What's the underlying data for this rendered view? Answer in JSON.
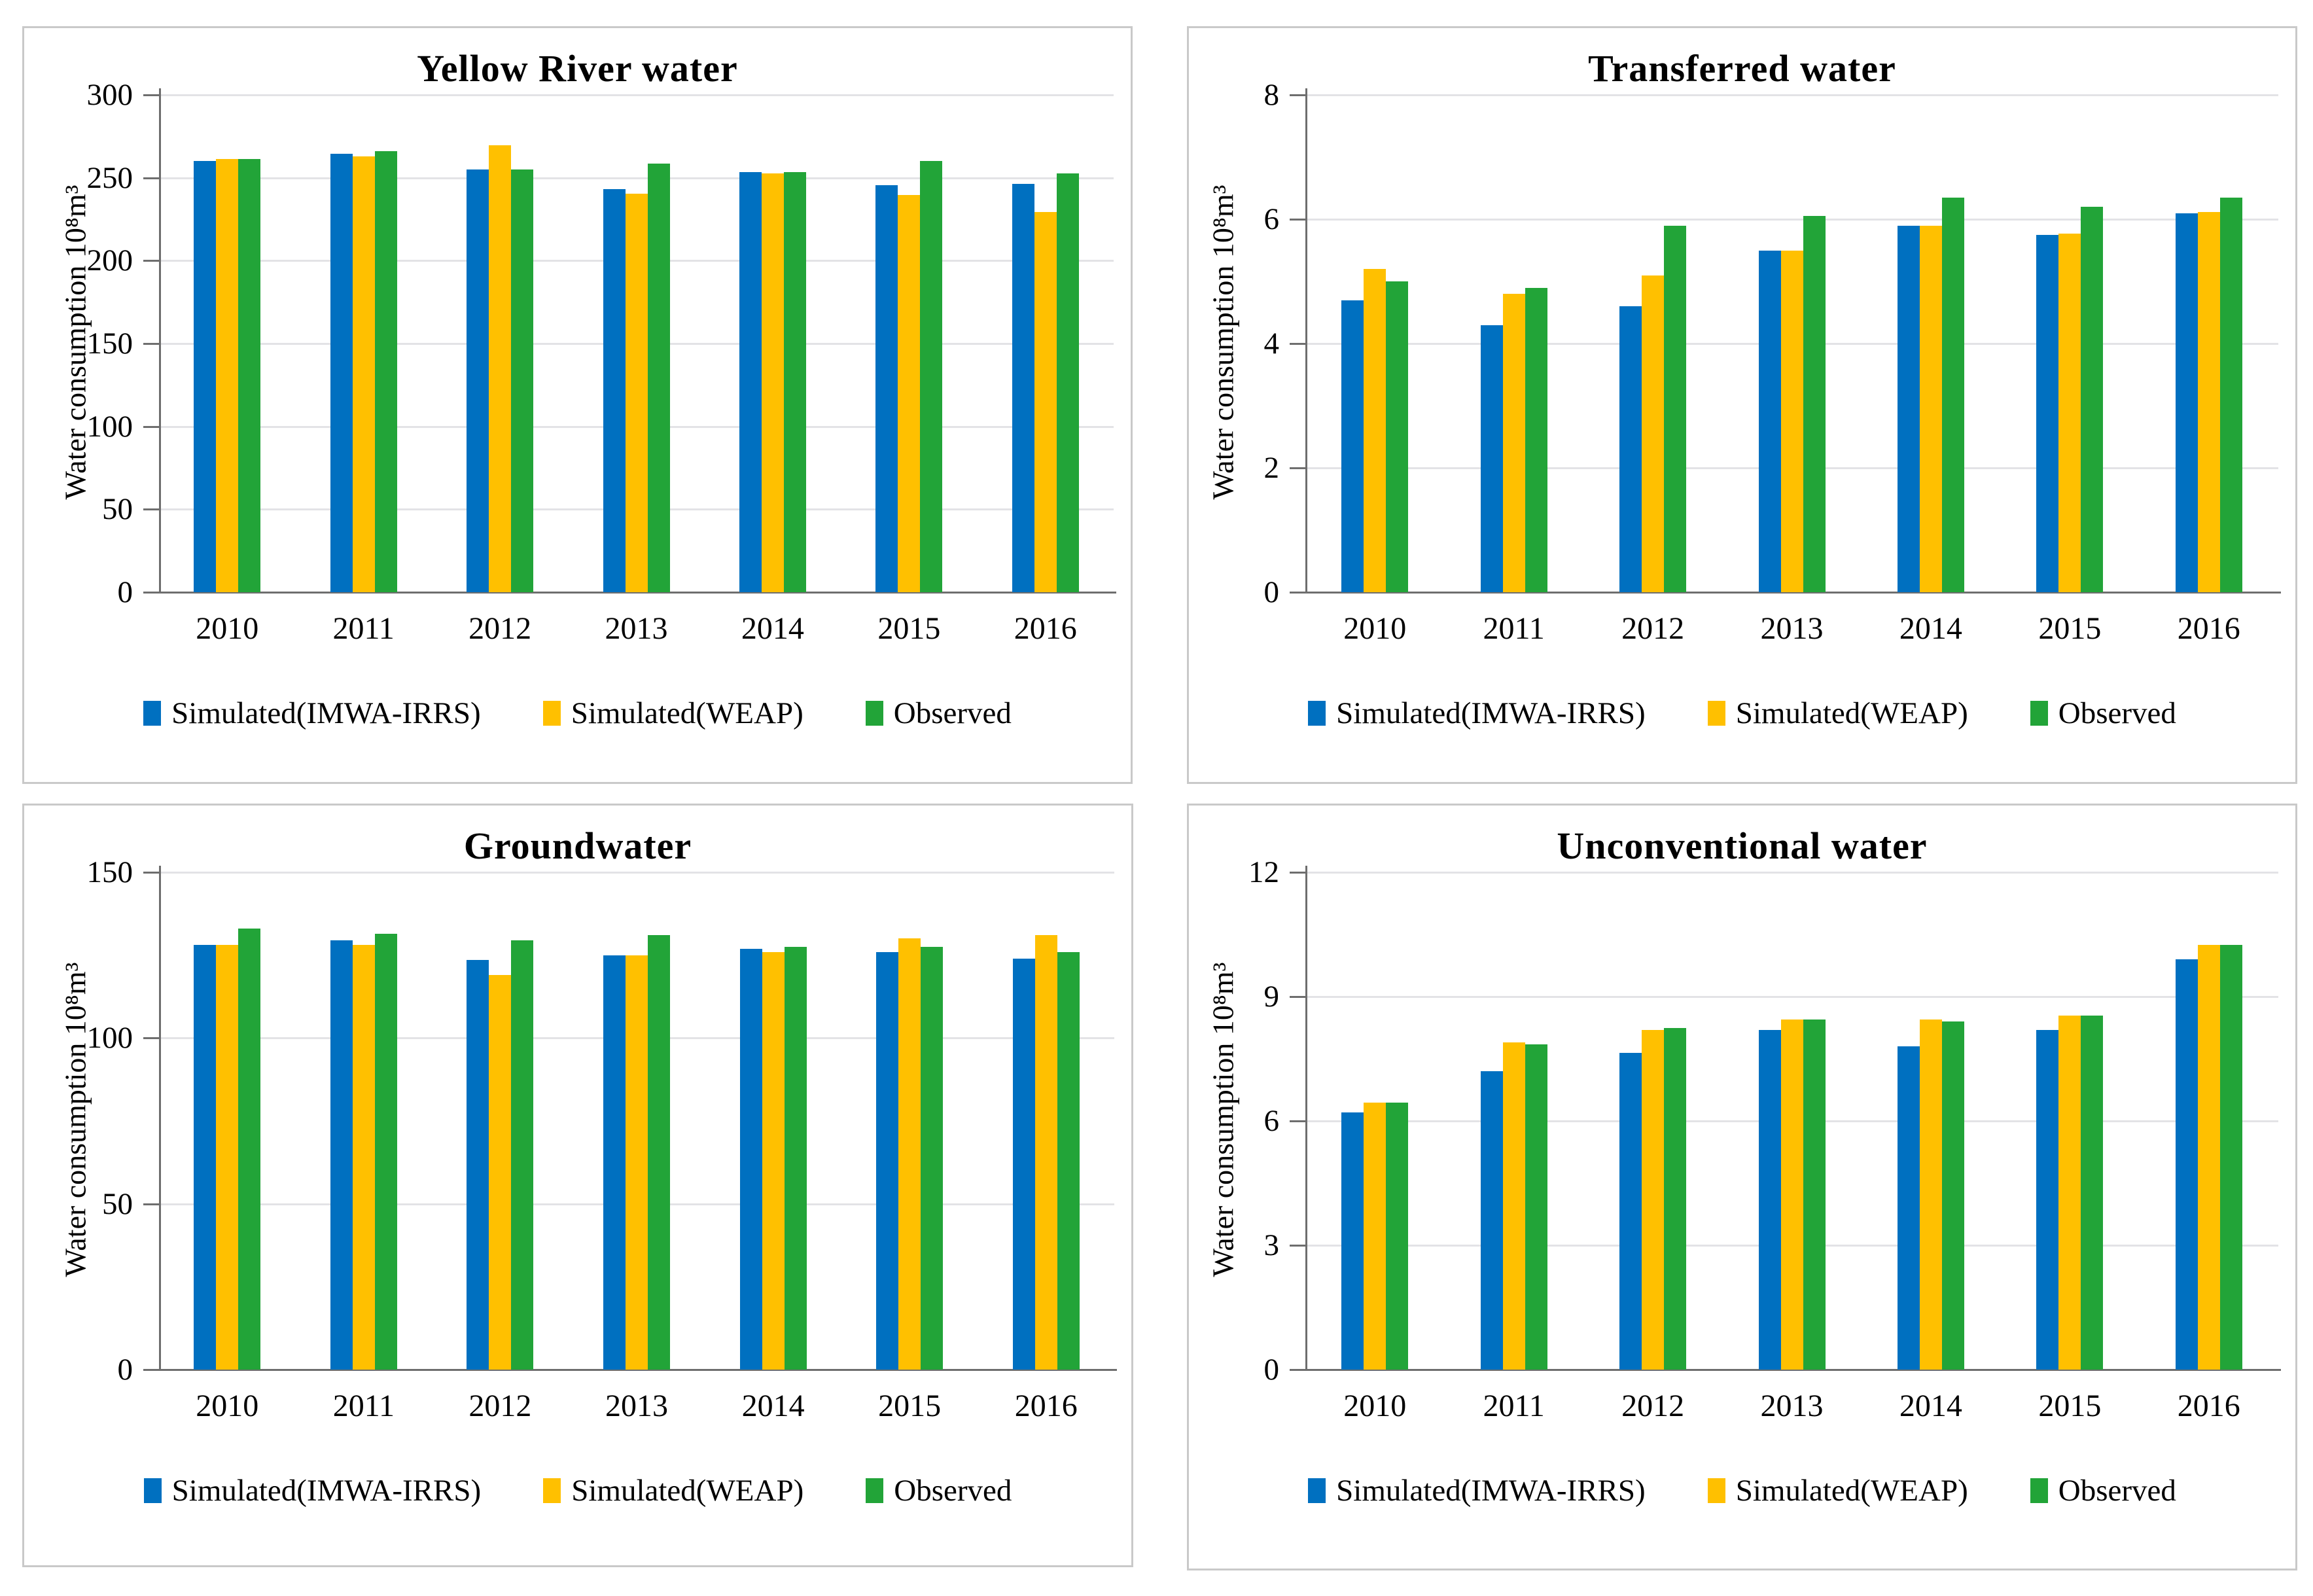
{
  "colors": {
    "simulated_imwa_irrs": "#0070C0",
    "simulated_weap": "#FFC000",
    "observed": "#22A438",
    "gridline": "#E3E3E6",
    "axis": "#6E6E6E",
    "panel_border": "#C9C9C9",
    "text": "#000000",
    "background": "#FFFFFF"
  },
  "legend_labels": [
    "Simulated(IMWA-IRRS)",
    "Simulated(WEAP)",
    "Observed"
  ],
  "chart_data": [
    {
      "type": "bar",
      "title": "Yellow River water",
      "ylabel": "Water consumption 10⁸m³",
      "xlabel": "",
      "categories": [
        "2010",
        "2011",
        "2012",
        "2013",
        "2014",
        "2015",
        "2016"
      ],
      "ylim": [
        0,
        300
      ],
      "ytick_step": 50,
      "yticks": [
        0,
        50,
        100,
        150,
        200,
        250,
        300
      ],
      "grid": true,
      "legend_position": "bottom",
      "series": [
        {
          "name": "Simulated(IMWA-IRRS)",
          "color_key": "simulated_imwa_irrs",
          "values": [
            260,
            264.5,
            255,
            243,
            253.5,
            245.5,
            246.5
          ]
        },
        {
          "name": "Simulated(WEAP)",
          "color_key": "simulated_weap",
          "values": [
            261.5,
            263,
            269.5,
            240.5,
            252.5,
            239.5,
            229.5
          ]
        },
        {
          "name": "Observed",
          "color_key": "observed",
          "values": [
            261.5,
            266,
            255,
            258.5,
            253.5,
            260,
            252.5
          ]
        }
      ]
    },
    {
      "type": "bar",
      "title": "Transferred water",
      "ylabel": "Water consumption 10⁸m³",
      "xlabel": "",
      "categories": [
        "2010",
        "2011",
        "2012",
        "2013",
        "2014",
        "2015",
        "2016"
      ],
      "ylim": [
        0,
        8
      ],
      "ytick_step": 2,
      "yticks": [
        0,
        2,
        4,
        6,
        8
      ],
      "grid": true,
      "legend_position": "bottom",
      "series": [
        {
          "name": "Simulated(IMWA-IRRS)",
          "color_key": "simulated_imwa_irrs",
          "values": [
            4.7,
            4.3,
            4.6,
            5.5,
            5.9,
            5.75,
            6.1
          ]
        },
        {
          "name": "Simulated(WEAP)",
          "color_key": "simulated_weap",
          "values": [
            5.2,
            4.8,
            5.1,
            5.5,
            5.9,
            5.77,
            6.12
          ]
        },
        {
          "name": "Observed",
          "color_key": "observed",
          "values": [
            5.0,
            4.9,
            5.9,
            6.05,
            6.35,
            6.2,
            6.35
          ]
        }
      ]
    },
    {
      "type": "bar",
      "title": "Groundwater",
      "ylabel": "Water consumption 10⁸m³",
      "xlabel": "",
      "categories": [
        "2010",
        "2011",
        "2012",
        "2013",
        "2014",
        "2015",
        "2016"
      ],
      "ylim": [
        0,
        150
      ],
      "ytick_step": 50,
      "yticks": [
        0,
        50,
        100,
        150
      ],
      "grid": true,
      "legend_position": "bottom",
      "series": [
        {
          "name": "Simulated(IMWA-IRRS)",
          "color_key": "simulated_imwa_irrs",
          "values": [
            128,
            129.5,
            123.5,
            125,
            127,
            126,
            124
          ]
        },
        {
          "name": "Simulated(WEAP)",
          "color_key": "simulated_weap",
          "values": [
            128,
            128,
            119,
            125,
            126,
            130,
            131
          ]
        },
        {
          "name": "Observed",
          "color_key": "observed",
          "values": [
            133,
            131.5,
            129.5,
            131,
            127.5,
            127.5,
            126
          ]
        }
      ]
    },
    {
      "type": "bar",
      "title": "Unconventional water",
      "ylabel": "Water consumption 10⁸m³",
      "xlabel": "",
      "categories": [
        "2010",
        "2011",
        "2012",
        "2013",
        "2014",
        "2015",
        "2016"
      ],
      "ylim": [
        0,
        12
      ],
      "ytick_step": 3,
      "yticks": [
        0,
        3,
        6,
        9,
        12
      ],
      "grid": true,
      "legend_position": "bottom",
      "series": [
        {
          "name": "Simulated(IMWA-IRRS)",
          "color_key": "simulated_imwa_irrs",
          "values": [
            6.2,
            7.2,
            7.65,
            8.2,
            7.8,
            8.2,
            9.9
          ]
        },
        {
          "name": "Simulated(WEAP)",
          "color_key": "simulated_weap",
          "values": [
            6.45,
            7.9,
            8.2,
            8.45,
            8.45,
            8.55,
            10.25
          ]
        },
        {
          "name": "Observed",
          "color_key": "observed",
          "values": [
            6.45,
            7.85,
            8.25,
            8.45,
            8.4,
            8.55,
            10.25
          ]
        }
      ]
    }
  ]
}
